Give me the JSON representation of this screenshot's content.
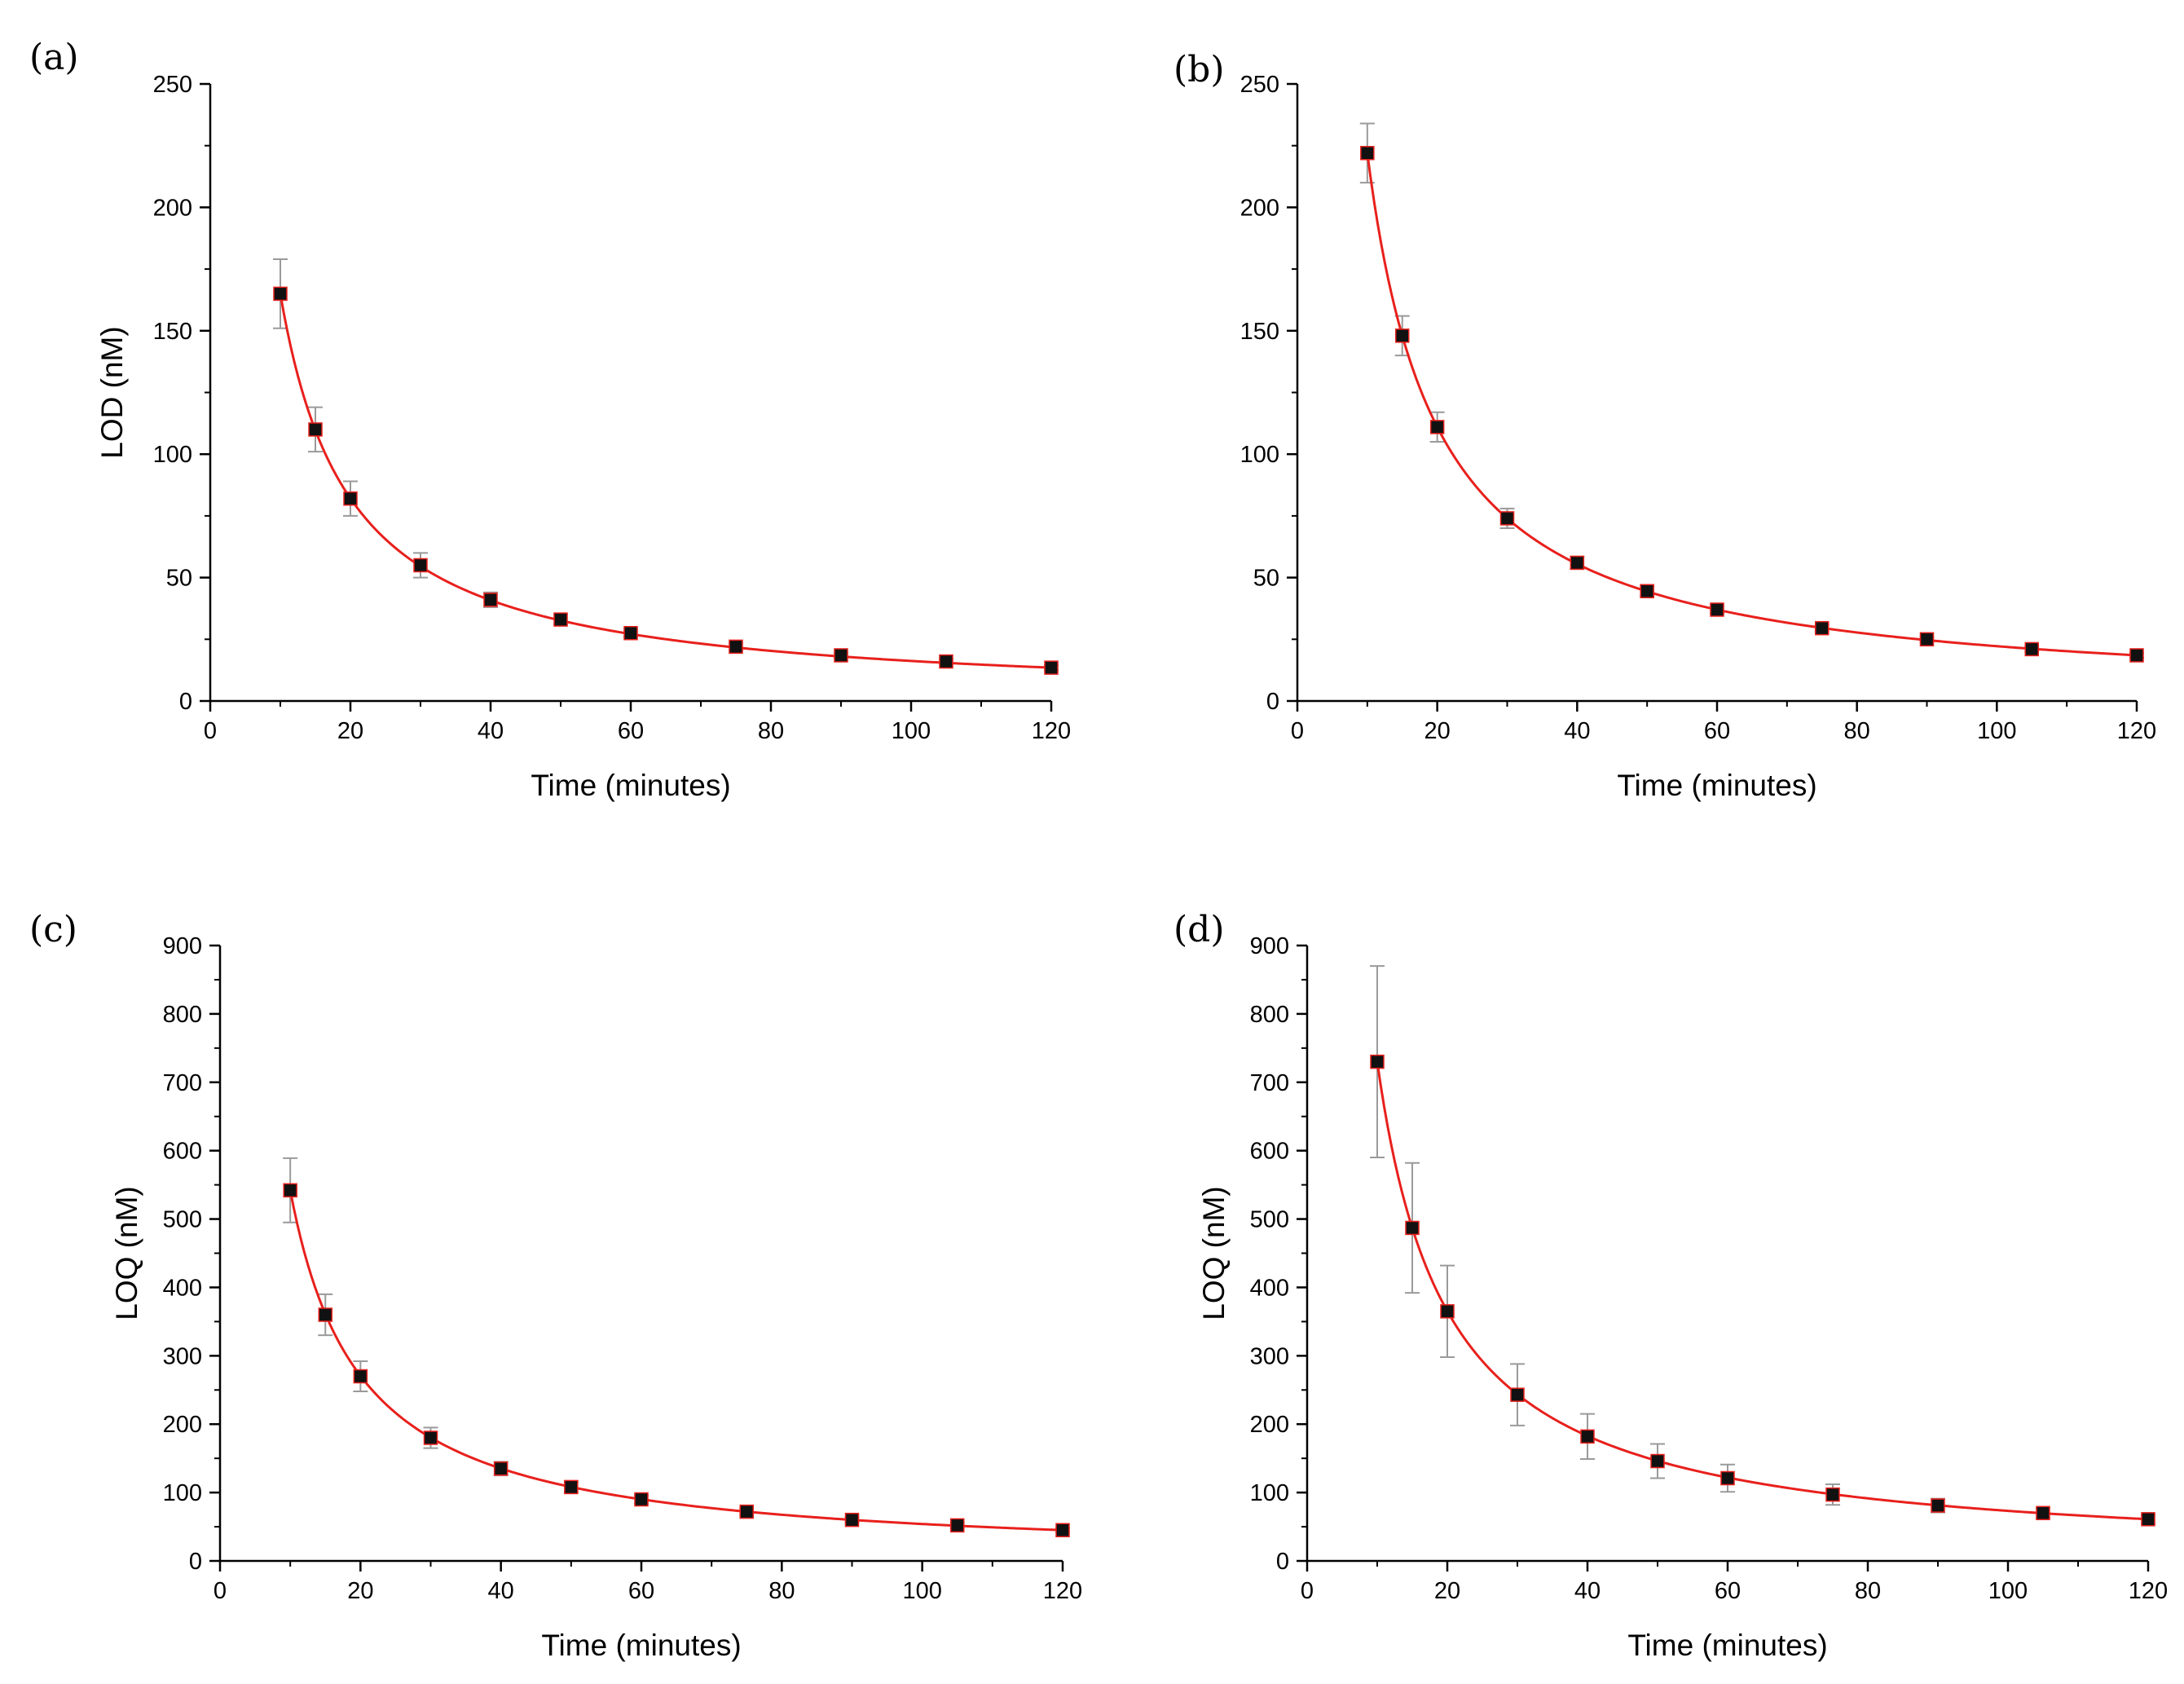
{
  "chart_data": [
    {
      "type": "scatter",
      "panel_label": "(a)",
      "title": "",
      "xlabel": "Time (minutes)",
      "ylabel": "LOD (nM)",
      "xlim": [
        0,
        120
      ],
      "ylim": [
        0,
        250
      ],
      "xticks": [
        0,
        20,
        40,
        60,
        80,
        100,
        120
      ],
      "yticks": [
        0,
        50,
        100,
        150,
        200,
        250
      ],
      "grid": false,
      "fit_line": "red smooth fit curve",
      "fit_color": "#e8201c",
      "marker_color": "#111111",
      "errorbar_color": "#9a9a9a",
      "points": [
        {
          "x": 10,
          "y": 165,
          "err": 14
        },
        {
          "x": 15,
          "y": 110,
          "err": 9
        },
        {
          "x": 20,
          "y": 82,
          "err": 7
        },
        {
          "x": 30,
          "y": 55,
          "err": 5
        },
        {
          "x": 40,
          "y": 41,
          "err": 3
        },
        {
          "x": 50,
          "y": 33,
          "err": 2
        },
        {
          "x": 60,
          "y": 27.5,
          "err": 1.5
        },
        {
          "x": 75,
          "y": 22,
          "err": 1.5
        },
        {
          "x": 90,
          "y": 18.5,
          "err": 1
        },
        {
          "x": 105,
          "y": 16,
          "err": 1
        },
        {
          "x": 120,
          "y": 13.5,
          "err": 1
        }
      ]
    },
    {
      "type": "scatter",
      "panel_label": "(b)",
      "title": "",
      "xlabel": "Time (minutes)",
      "ylabel": "",
      "xlim": [
        0,
        120
      ],
      "ylim": [
        0,
        250
      ],
      "xticks": [
        0,
        20,
        40,
        60,
        80,
        100,
        120
      ],
      "yticks": [
        0,
        50,
        100,
        150,
        200,
        250
      ],
      "grid": false,
      "fit_line": "red smooth fit curve",
      "fit_color": "#e8201c",
      "marker_color": "#111111",
      "errorbar_color": "#9a9a9a",
      "points": [
        {
          "x": 10,
          "y": 222,
          "err": 12
        },
        {
          "x": 15,
          "y": 148,
          "err": 8
        },
        {
          "x": 20,
          "y": 111,
          "err": 6
        },
        {
          "x": 30,
          "y": 74,
          "err": 4
        },
        {
          "x": 40,
          "y": 56,
          "err": 2.5
        },
        {
          "x": 50,
          "y": 44.5,
          "err": 2
        },
        {
          "x": 60,
          "y": 37,
          "err": 1.5
        },
        {
          "x": 75,
          "y": 29.5,
          "err": 1.5
        },
        {
          "x": 90,
          "y": 25,
          "err": 1
        },
        {
          "x": 105,
          "y": 21,
          "err": 1
        },
        {
          "x": 120,
          "y": 18.5,
          "err": 1
        }
      ]
    },
    {
      "type": "scatter",
      "panel_label": "(c)",
      "title": "",
      "xlabel": "Time (minutes)",
      "ylabel": "LOQ (nM)",
      "xlim": [
        0,
        120
      ],
      "ylim": [
        0,
        900
      ],
      "xticks": [
        0,
        20,
        40,
        60,
        80,
        100,
        120
      ],
      "yticks": [
        0,
        100,
        200,
        300,
        400,
        500,
        600,
        700,
        800,
        900
      ],
      "grid": false,
      "fit_line": "red smooth fit curve",
      "fit_color": "#e8201c",
      "marker_color": "#111111",
      "errorbar_color": "#9a9a9a",
      "points": [
        {
          "x": 10,
          "y": 542,
          "err": 47
        },
        {
          "x": 15,
          "y": 360,
          "err": 30
        },
        {
          "x": 20,
          "y": 270,
          "err": 22
        },
        {
          "x": 30,
          "y": 180,
          "err": 15
        },
        {
          "x": 40,
          "y": 135,
          "err": 10
        },
        {
          "x": 50,
          "y": 108,
          "err": 7
        },
        {
          "x": 60,
          "y": 90,
          "err": 6
        },
        {
          "x": 75,
          "y": 72,
          "err": 5
        },
        {
          "x": 90,
          "y": 60,
          "err": 4
        },
        {
          "x": 105,
          "y": 52,
          "err": 4
        },
        {
          "x": 120,
          "y": 45,
          "err": 3
        }
      ]
    },
    {
      "type": "scatter",
      "panel_label": "(d)",
      "title": "",
      "xlabel": "Time (minutes)",
      "ylabel": "LOQ (nM)",
      "xlim": [
        0,
        120
      ],
      "ylim": [
        0,
        900
      ],
      "xticks": [
        0,
        20,
        40,
        60,
        80,
        100,
        120
      ],
      "yticks": [
        0,
        100,
        200,
        300,
        400,
        500,
        600,
        700,
        800,
        900
      ],
      "grid": false,
      "fit_line": "red smooth fit curve",
      "fit_color": "#e8201c",
      "marker_color": "#111111",
      "errorbar_color": "#9a9a9a",
      "points": [
        {
          "x": 10,
          "y": 730,
          "err": 140
        },
        {
          "x": 15,
          "y": 487,
          "err": 95
        },
        {
          "x": 20,
          "y": 365,
          "err": 67
        },
        {
          "x": 30,
          "y": 243,
          "err": 45
        },
        {
          "x": 40,
          "y": 182,
          "err": 33
        },
        {
          "x": 50,
          "y": 146,
          "err": 25
        },
        {
          "x": 60,
          "y": 121,
          "err": 20
        },
        {
          "x": 75,
          "y": 97,
          "err": 15
        },
        {
          "x": 90,
          "y": 81,
          "err": 10
        },
        {
          "x": 105,
          "y": 70,
          "err": 7
        },
        {
          "x": 120,
          "y": 61,
          "err": 6
        }
      ]
    }
  ]
}
